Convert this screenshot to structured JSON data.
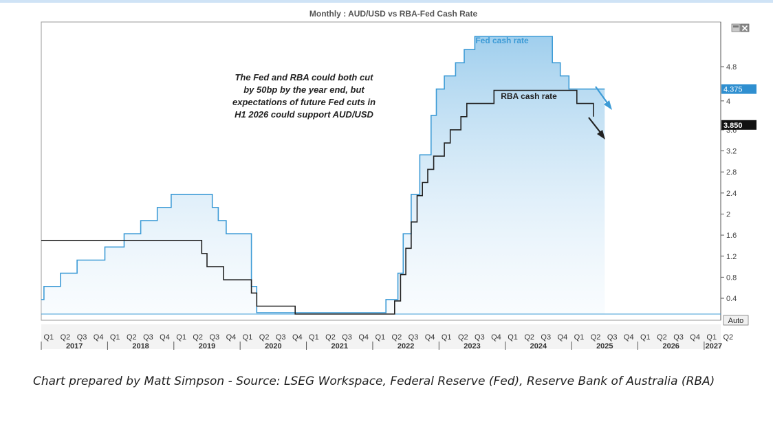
{
  "chart_data": {
    "type": "line",
    "title": "Monthly : AUD/USD vs RBA-Fed Cash Rate",
    "ylim": [
      0,
      5.6
    ],
    "y_ticks": [
      "0.4",
      "0.8",
      "1.2",
      "1.6",
      "2",
      "2.4",
      "2.8",
      "3.2",
      "3.6",
      "4",
      "4.8"
    ],
    "axis_mode_label": "Auto",
    "x_range": [
      2017.0,
      2027.25
    ],
    "x_quarter_labels": [
      "Q1",
      "Q2",
      "Q3",
      "Q4",
      "Q1",
      "Q2",
      "Q3",
      "Q4",
      "Q1",
      "Q2",
      "Q3",
      "Q4",
      "Q1",
      "Q2",
      "Q3",
      "Q4",
      "Q1",
      "Q2",
      "Q3",
      "Q4",
      "Q1",
      "Q2",
      "Q3",
      "Q4",
      "Q1",
      "Q2",
      "Q3",
      "Q4",
      "Q1",
      "Q2",
      "Q3",
      "Q4",
      "Q1",
      "Q2",
      "Q3",
      "Q4",
      "Q1",
      "Q2",
      "Q3",
      "Q4",
      "Q1",
      "Q2"
    ],
    "x_year_labels": [
      "2017",
      "2018",
      "2019",
      "2020",
      "2021",
      "2022",
      "2023",
      "2024",
      "2025",
      "2026",
      "2027"
    ],
    "series": [
      {
        "name": "Fed cash rate",
        "color": "#3d9bd6",
        "last_value_label": "4.375",
        "points": [
          [
            2017.0,
            0.375
          ],
          [
            2017.04,
            0.625
          ],
          [
            2017.29,
            0.875
          ],
          [
            2017.54,
            1.125
          ],
          [
            2017.96,
            1.375
          ],
          [
            2018.25,
            1.625
          ],
          [
            2018.5,
            1.875
          ],
          [
            2018.75,
            2.125
          ],
          [
            2018.96,
            2.375
          ],
          [
            2019.58,
            2.125
          ],
          [
            2019.67,
            1.875
          ],
          [
            2019.79,
            1.625
          ],
          [
            2020.17,
            0.625
          ],
          [
            2020.25,
            0.125
          ],
          [
            2022.2,
            0.375
          ],
          [
            2022.38,
            0.875
          ],
          [
            2022.46,
            1.625
          ],
          [
            2022.58,
            2.375
          ],
          [
            2022.71,
            3.125
          ],
          [
            2022.88,
            3.875
          ],
          [
            2022.96,
            4.375
          ],
          [
            2023.08,
            4.625
          ],
          [
            2023.25,
            4.875
          ],
          [
            2023.38,
            5.125
          ],
          [
            2023.54,
            5.375
          ],
          [
            2024.71,
            4.875
          ],
          [
            2024.83,
            4.625
          ],
          [
            2024.96,
            4.375
          ],
          [
            2025.5,
            4.375
          ]
        ]
      },
      {
        "name": "RBA cash rate",
        "color": "#222222",
        "last_value_label": "3.850",
        "points": [
          [
            2017.0,
            1.5
          ],
          [
            2019.42,
            1.25
          ],
          [
            2019.5,
            1.0
          ],
          [
            2019.75,
            0.75
          ],
          [
            2020.17,
            0.5
          ],
          [
            2020.25,
            0.25
          ],
          [
            2020.83,
            0.1
          ],
          [
            2022.33,
            0.35
          ],
          [
            2022.42,
            0.85
          ],
          [
            2022.5,
            1.35
          ],
          [
            2022.58,
            1.85
          ],
          [
            2022.67,
            2.35
          ],
          [
            2022.75,
            2.6
          ],
          [
            2022.83,
            2.85
          ],
          [
            2022.92,
            3.1
          ],
          [
            2023.08,
            3.35
          ],
          [
            2023.17,
            3.6
          ],
          [
            2023.33,
            3.85
          ],
          [
            2023.42,
            4.1
          ],
          [
            2023.83,
            4.35
          ],
          [
            2025.08,
            4.1
          ],
          [
            2025.33,
            3.85
          ]
        ]
      }
    ],
    "annotations": {
      "callout": [
        "The Fed and RBA could both cut",
        "by 50bp by the year end, but",
        "expectations of future Fed cuts in",
        "H1 2026 could support AUD/USD"
      ]
    },
    "grid": false,
    "legend": "inline-labels"
  },
  "caption": "Chart prepared by Matt Simpson - Source: LSEG Workspace, Federal Reserve (Fed), Reserve Bank of Australia (RBA)"
}
